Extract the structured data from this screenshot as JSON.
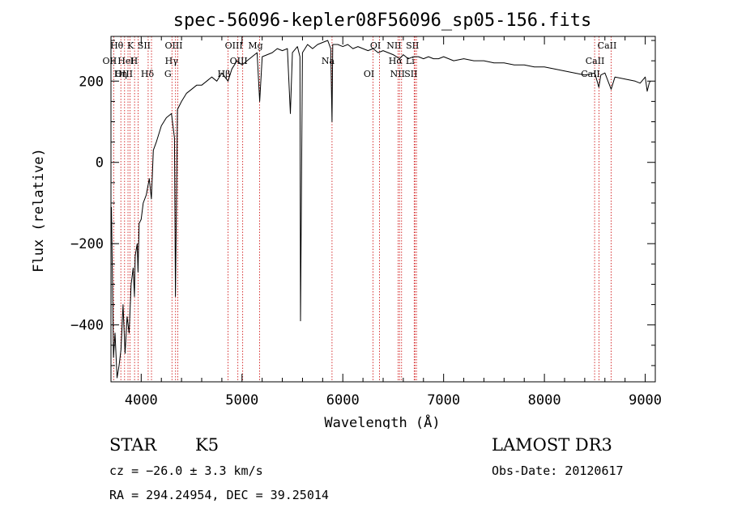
{
  "chart_data": {
    "type": "line",
    "title": "spec-56096-kepler08F56096_sp05-156.fits",
    "xlabel": "Wavelength (Å)",
    "ylabel": "Flux (relative)",
    "xlim": [
      3700,
      9100
    ],
    "ylim": [
      -540,
      310
    ],
    "xticks": [
      4000,
      5000,
      6000,
      7000,
      8000,
      9000
    ],
    "xtick_labels": [
      "4000",
      "5000",
      "6000",
      "7000",
      "8000",
      "9000"
    ],
    "yticks": [
      -400,
      -200,
      0,
      200
    ],
    "ytick_labels": [
      "−400",
      "−200",
      "0",
      "200"
    ],
    "series": [
      {
        "name": "flux",
        "x": [
          3705,
          3715,
          3725,
          3740,
          3760,
          3780,
          3800,
          3820,
          3840,
          3860,
          3880,
          3900,
          3920,
          3933,
          3940,
          3960,
          3968,
          3980,
          4000,
          4020,
          4050,
          4080,
          4101,
          4120,
          4150,
          4200,
          4250,
          4300,
          4330,
          4340,
          4360,
          4400,
          4450,
          4500,
          4550,
          4600,
          4650,
          4700,
          4750,
          4800,
          4861,
          4900,
          4950,
          5000,
          5050,
          5100,
          5150,
          5175,
          5200,
          5250,
          5300,
          5350,
          5400,
          5450,
          5480,
          5500,
          5550,
          5575,
          5580,
          5600,
          5650,
          5700,
          5750,
          5800,
          5850,
          5880,
          5893,
          5900,
          5950,
          6000,
          6050,
          6100,
          6150,
          6200,
          6250,
          6300,
          6350,
          6400,
          6450,
          6500,
          6563,
          6600,
          6650,
          6700,
          6750,
          6800,
          6850,
          6900,
          6950,
          7000,
          7100,
          7200,
          7300,
          7400,
          7500,
          7600,
          7700,
          7800,
          7900,
          8000,
          8100,
          8200,
          8300,
          8400,
          8500,
          8540,
          8560,
          8600,
          8662,
          8700,
          8800,
          8900,
          8950,
          9000,
          9020,
          9040,
          9050
        ],
        "values": [
          -110,
          -300,
          -480,
          -420,
          -530,
          -500,
          -460,
          -350,
          -470,
          -380,
          -420,
          -300,
          -260,
          -330,
          -230,
          -200,
          -270,
          -150,
          -140,
          -100,
          -80,
          -40,
          -90,
          30,
          50,
          90,
          110,
          120,
          60,
          -330,
          130,
          150,
          170,
          180,
          190,
          190,
          200,
          210,
          200,
          220,
          200,
          230,
          250,
          240,
          250,
          260,
          270,
          150,
          260,
          265,
          270,
          280,
          275,
          280,
          120,
          270,
          285,
          260,
          -390,
          270,
          290,
          280,
          290,
          295,
          300,
          280,
          100,
          290,
          290,
          285,
          290,
          280,
          285,
          280,
          275,
          280,
          270,
          275,
          270,
          265,
          255,
          265,
          255,
          260,
          260,
          255,
          260,
          255,
          255,
          260,
          250,
          255,
          250,
          250,
          245,
          245,
          240,
          240,
          235,
          235,
          230,
          225,
          220,
          215,
          220,
          185,
          215,
          220,
          180,
          210,
          205,
          200,
          195,
          210,
          175,
          195,
          200
        ]
      }
    ],
    "line_markers": [
      {
        "label": "Hθ",
        "x": 3798
      },
      {
        "label": "OII",
        "x": 3727
      },
      {
        "label": "OIII",
        "x": 3869
      },
      {
        "label": "K",
        "x": 3934
      },
      {
        "label": "HeI",
        "x": 3889
      },
      {
        "label": "Hη",
        "x": 3835
      },
      {
        "label": "SII",
        "x": 4069
      },
      {
        "label": "H",
        "x": 3969
      },
      {
        "label": "Hδ",
        "x": 4102
      },
      {
        "label": "OIII",
        "x": 4363
      },
      {
        "label": "Hγ",
        "x": 4341
      },
      {
        "label": "G",
        "x": 4305
      },
      {
        "label": "OIII",
        "x": 4959
      },
      {
        "label": "OIII",
        "x": 5007
      },
      {
        "label": "Hβ",
        "x": 4861
      },
      {
        "label": "Mg",
        "x": 5175
      },
      {
        "label": "Na",
        "x": 5893
      },
      {
        "label": "OI",
        "x": 6300
      },
      {
        "label": "OI",
        "x": 6364
      },
      {
        "label": "Hα",
        "x": 6563
      },
      {
        "label": "SII",
        "x": 6716
      },
      {
        "label": "NII",
        "x": 6548
      },
      {
        "label": "Li",
        "x": 6708
      },
      {
        "label": "NII",
        "x": 6583
      },
      {
        "label": "SII",
        "x": 6731
      },
      {
        "label": "CaII",
        "x": 8542
      },
      {
        "label": "CaII",
        "x": 8498
      },
      {
        "label": "CaII",
        "x": 8662
      }
    ]
  },
  "info": {
    "object_class": "STAR",
    "subclass": "K5",
    "survey": "LAMOST DR3",
    "cz": "cz = −26.0 ± 3.3 km/s",
    "obs_date": "Obs-Date: 20120617",
    "coords": "RA = 294.24954, DEC =  39.25014"
  },
  "colors": {
    "axis": "#000000",
    "spectrum": "#000000",
    "line_marker": "#cc0000"
  }
}
